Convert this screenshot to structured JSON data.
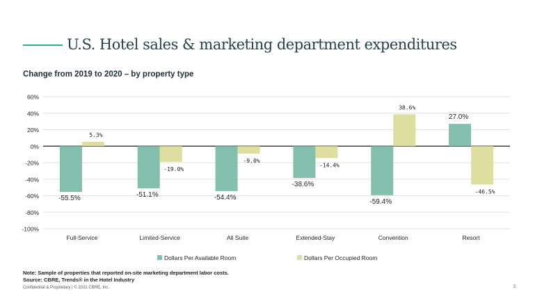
{
  "header": {
    "title": "U.S. Hotel sales & marketing department expenditures",
    "subtitle": "Change from 2019 to 2020 – by property type"
  },
  "footer": {
    "note_line1": "Note: Sample of properties that reported on-site marketing department labor costs.",
    "note_line2": "Source: CBRE, Trends® in the Hotel Industry",
    "confidential": "Confidential & Proprietary | © 2021 CBRE, Inc.",
    "page_number": "3"
  },
  "colors": {
    "series1": "#83bfad",
    "series2": "#dedea0",
    "accent": "#2fae82"
  },
  "chart_data": {
    "type": "bar",
    "title": "Change from 2019 to 2020 – by property type",
    "xlabel": "",
    "ylabel": "",
    "ylim": [
      -100,
      60
    ],
    "yticks": [
      -100,
      -80,
      -60,
      -40,
      -20,
      0,
      20,
      40,
      60
    ],
    "ytick_labels": [
      "-100%",
      "-80%",
      "-60%",
      "-40%",
      "-20%",
      "0%",
      "20%",
      "40%",
      "60%"
    ],
    "grid": true,
    "legend_position": "bottom",
    "categories": [
      "Full-Service",
      "Limited-Service",
      "All Suite",
      "Extended-Stay",
      "Convention",
      "Resort"
    ],
    "series": [
      {
        "name": "Dollars Per Available Room",
        "values": [
          -55.5,
          -51.1,
          -54.4,
          -38.6,
          -59.4,
          27.0
        ],
        "labels": [
          "-55.5%",
          "-51.1%",
          "-54.4%",
          "-38.6%",
          "-59.4%",
          "27.0%"
        ]
      },
      {
        "name": "Dollars Per Occupied Room",
        "values": [
          5.3,
          -19.0,
          -9.0,
          -14.4,
          38.6,
          -46.5
        ],
        "labels": [
          "5.3%",
          "-19.0%",
          "-9.0%",
          "-14.4%",
          "38.6%",
          "-46.5%"
        ]
      }
    ]
  }
}
